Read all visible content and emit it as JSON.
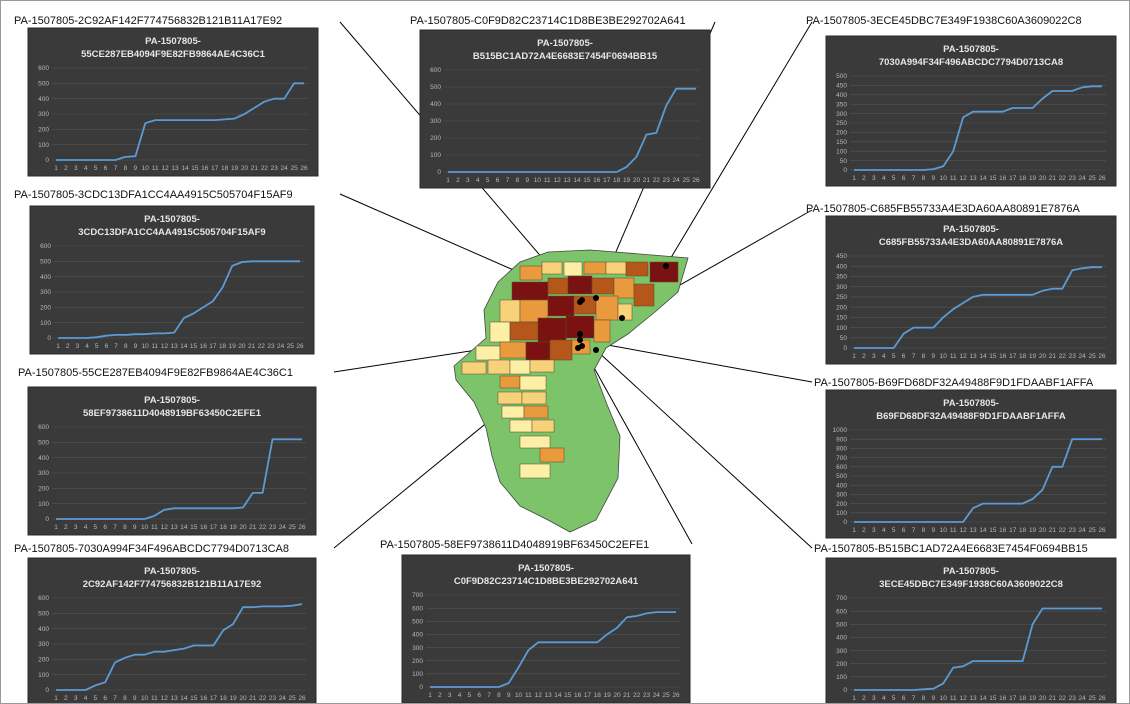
{
  "colors": {
    "panel_bg": "#3a3a3a",
    "line": "#5b9bd5",
    "grid": "#555555",
    "map_colors": [
      "#7a1212",
      "#b5561a",
      "#e89a3c",
      "#f7d27a",
      "#fdf0a6",
      "#7cc36a"
    ]
  },
  "callouts": [
    {
      "id": "PA-1507805-2C92AF142F774756832B121B11A17E92"
    },
    {
      "id": "PA-1507805-C0F9D82C23714C1D8BE3BE292702A641"
    },
    {
      "id": "PA-1507805-3ECE45DBC7E349F1938C60A3609022C8"
    },
    {
      "id": "PA-1507805-3CDC13DFA1CC4AA4915C505704F15AF9"
    },
    {
      "id": "PA-1507805-C685FB55733A4E3DA60AA80891E7876A"
    },
    {
      "id": "PA-1507805-55CE287EB4094F9E82FB9864AE4C36C1"
    },
    {
      "id": "PA-1507805-B69FD68DF32A49488F9D1FDAABF1AFFA"
    },
    {
      "id": "PA-1507805-7030A994F34F496ABCDC7794D0713CA8"
    },
    {
      "id": "PA-1507805-58EF9738611D4048919BF63450C2EFE1"
    },
    {
      "id": "PA-1507805-B515BC1AD72A4E6683E7454F0694BB15"
    }
  ],
  "chart_data": [
    {
      "type": "line",
      "title_line1": "PA-1507805-",
      "title_line2": "55CE287EB4094F9E82FB9864AE4C36C1",
      "x": [
        1,
        2,
        3,
        4,
        5,
        6,
        7,
        8,
        9,
        10,
        11,
        12,
        13,
        14,
        15,
        16,
        17,
        18,
        19,
        20,
        21,
        22,
        23,
        24,
        25,
        26
      ],
      "yticks": [
        0,
        100,
        200,
        300,
        400,
        500,
        600
      ],
      "ylim": [
        0,
        600
      ],
      "values": [
        0,
        0,
        0,
        0,
        0,
        0,
        0,
        20,
        25,
        240,
        260,
        260,
        260,
        260,
        260,
        260,
        260,
        265,
        270,
        300,
        340,
        380,
        400,
        400,
        500,
        500
      ]
    },
    {
      "type": "line",
      "title_line1": "PA-1507805-",
      "title_line2": "B515BC1AD72A4E6683E7454F0694BB15",
      "x": [
        1,
        2,
        3,
        4,
        5,
        6,
        7,
        8,
        9,
        10,
        11,
        12,
        13,
        14,
        15,
        16,
        17,
        18,
        19,
        20,
        21,
        22,
        23,
        24,
        25,
        26
      ],
      "yticks": [
        0,
        100,
        200,
        300,
        400,
        500,
        600
      ],
      "ylim": [
        0,
        600
      ],
      "values": [
        0,
        0,
        0,
        0,
        0,
        0,
        0,
        0,
        0,
        0,
        0,
        0,
        0,
        0,
        0,
        0,
        0,
        0,
        30,
        90,
        220,
        230,
        390,
        490,
        490,
        490
      ]
    },
    {
      "type": "line",
      "title_line1": "PA-1507805-",
      "title_line2": "7030A994F34F496ABCDC7794D0713CA8",
      "x": [
        1,
        2,
        3,
        4,
        5,
        6,
        7,
        8,
        9,
        10,
        11,
        12,
        13,
        14,
        15,
        16,
        17,
        18,
        19,
        20,
        21,
        22,
        23,
        24,
        25,
        26
      ],
      "yticks": [
        0,
        50,
        100,
        150,
        200,
        250,
        300,
        350,
        400,
        450,
        500
      ],
      "ylim": [
        0,
        500
      ],
      "values": [
        0,
        0,
        0,
        0,
        0,
        0,
        0,
        0,
        5,
        20,
        100,
        280,
        310,
        310,
        310,
        310,
        330,
        330,
        330,
        380,
        420,
        420,
        420,
        440,
        445,
        445
      ]
    },
    {
      "type": "line",
      "title_line1": "PA-1507805-",
      "title_line2": "3CDC13DFA1CC4AA4915C505704F15AF9",
      "x": [
        1,
        2,
        3,
        4,
        5,
        6,
        7,
        8,
        9,
        10,
        11,
        12,
        13,
        14,
        15,
        16,
        17,
        18,
        19,
        20,
        21,
        22,
        23,
        24,
        25,
        26
      ],
      "yticks": [
        0,
        100,
        200,
        300,
        400,
        500,
        600
      ],
      "ylim": [
        0,
        600
      ],
      "values": [
        0,
        0,
        0,
        0,
        5,
        15,
        20,
        20,
        25,
        25,
        30,
        30,
        35,
        130,
        160,
        200,
        240,
        330,
        470,
        495,
        500,
        500,
        500,
        500,
        500,
        500
      ]
    },
    {
      "type": "line",
      "title_line1": "PA-1507805-",
      "title_line2": "C685FB55733A4E3DA60AA80891E7876A",
      "x": [
        1,
        2,
        3,
        4,
        5,
        6,
        7,
        8,
        9,
        10,
        11,
        12,
        13,
        14,
        15,
        16,
        17,
        18,
        19,
        20,
        21,
        22,
        23,
        24,
        25,
        26
      ],
      "yticks": [
        0,
        50,
        100,
        150,
        200,
        250,
        300,
        350,
        400,
        450
      ],
      "ylim": [
        0,
        450
      ],
      "values": [
        0,
        0,
        0,
        0,
        0,
        70,
        100,
        100,
        100,
        150,
        190,
        220,
        250,
        260,
        260,
        260,
        260,
        260,
        260,
        280,
        290,
        290,
        380,
        390,
        395,
        395
      ]
    },
    {
      "type": "line",
      "title_line1": "PA-1507805-",
      "title_line2": "58EF9738611D4048919BF63450C2EFE1",
      "x": [
        1,
        2,
        3,
        4,
        5,
        6,
        7,
        8,
        9,
        10,
        11,
        12,
        13,
        14,
        15,
        16,
        17,
        18,
        19,
        20,
        21,
        22,
        23,
        24,
        25,
        26
      ],
      "yticks": [
        0,
        100,
        200,
        300,
        400,
        500,
        600
      ],
      "ylim": [
        0,
        600
      ],
      "values": [
        0,
        0,
        0,
        0,
        0,
        0,
        0,
        0,
        0,
        0,
        20,
        60,
        70,
        70,
        70,
        70,
        70,
        70,
        70,
        75,
        170,
        170,
        520,
        520,
        520,
        520
      ]
    },
    {
      "type": "line",
      "title_line1": "PA-1507805-",
      "title_line2": "B69FD68DF32A49488F9D1FDAABF1AFFA",
      "x": [
        1,
        2,
        3,
        4,
        5,
        6,
        7,
        8,
        9,
        10,
        11,
        12,
        13,
        14,
        15,
        16,
        17,
        18,
        19,
        20,
        21,
        22,
        23,
        24,
        25,
        26
      ],
      "yticks": [
        0,
        100,
        200,
        300,
        400,
        500,
        600,
        700,
        800,
        900,
        1000
      ],
      "ylim": [
        0,
        1000
      ],
      "values": [
        0,
        0,
        0,
        0,
        0,
        0,
        0,
        0,
        0,
        0,
        0,
        0,
        150,
        200,
        200,
        200,
        200,
        200,
        250,
        350,
        600,
        600,
        900,
        900,
        900,
        900
      ]
    },
    {
      "type": "line",
      "title_line1": "PA-1507805-",
      "title_line2": "2C92AF142F774756832B121B11A17E92",
      "x": [
        1,
        2,
        3,
        4,
        5,
        6,
        7,
        8,
        9,
        10,
        11,
        12,
        13,
        14,
        15,
        16,
        17,
        18,
        19,
        20,
        21,
        22,
        23,
        24,
        25,
        26
      ],
      "yticks": [
        0,
        100,
        200,
        300,
        400,
        500,
        600
      ],
      "ylim": [
        0,
        600
      ],
      "values": [
        0,
        0,
        0,
        0,
        30,
        50,
        180,
        210,
        230,
        230,
        250,
        250,
        260,
        270,
        290,
        290,
        290,
        390,
        430,
        540,
        540,
        545,
        545,
        545,
        550,
        560
      ]
    },
    {
      "type": "line",
      "title_line1": "PA-1507805-",
      "title_line2": "C0F9D82C23714C1D8BE3BE292702A641",
      "x": [
        1,
        2,
        3,
        4,
        5,
        6,
        7,
        8,
        9,
        10,
        11,
        12,
        13,
        14,
        15,
        16,
        17,
        18,
        19,
        20,
        21,
        22,
        23,
        24,
        25,
        26
      ],
      "yticks": [
        0,
        100,
        200,
        300,
        400,
        500,
        600,
        700
      ],
      "ylim": [
        0,
        700
      ],
      "values": [
        0,
        0,
        0,
        0,
        0,
        0,
        0,
        0,
        30,
        150,
        280,
        340,
        340,
        340,
        340,
        340,
        340,
        340,
        400,
        450,
        530,
        540,
        560,
        570,
        570,
        570
      ]
    },
    {
      "type": "line",
      "title_line1": "PA-1507805-",
      "title_line2": "3ECE45DBC7E349F1938C60A3609022C8",
      "x": [
        1,
        2,
        3,
        4,
        5,
        6,
        7,
        8,
        9,
        10,
        11,
        12,
        13,
        14,
        15,
        16,
        17,
        18,
        19,
        20,
        21,
        22,
        23,
        24,
        25,
        26
      ],
      "yticks": [
        0,
        100,
        200,
        300,
        400,
        500,
        600,
        700
      ],
      "ylim": [
        0,
        700
      ],
      "values": [
        0,
        0,
        0,
        0,
        0,
        0,
        0,
        5,
        10,
        50,
        170,
        180,
        220,
        220,
        220,
        220,
        220,
        220,
        500,
        620,
        620,
        620,
        620,
        620,
        620,
        620
      ]
    }
  ]
}
